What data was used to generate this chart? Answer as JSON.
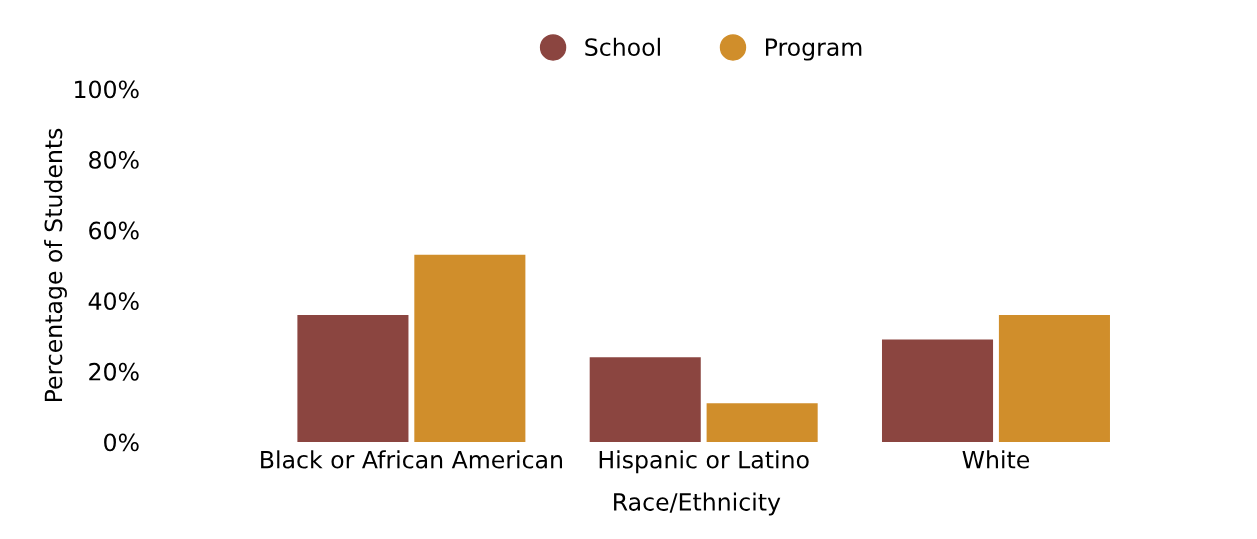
{
  "chart_data": {
    "type": "bar",
    "xlabel": "Race/Ethnicity",
    "ylabel": "Percentage of Students",
    "categories": [
      "Black or African American",
      "Hispanic or Latino",
      "White"
    ],
    "series": [
      {
        "name": "School",
        "color": "#8b4540",
        "values": [
          36,
          24,
          29
        ]
      },
      {
        "name": "Program",
        "color": "#d08e2b",
        "values": [
          53,
          11,
          36
        ]
      }
    ],
    "ylim": [
      0,
      100
    ],
    "yticks": [
      {
        "value": 0,
        "label": "0%"
      },
      {
        "value": 20,
        "label": "20%"
      },
      {
        "value": 40,
        "label": "40%"
      },
      {
        "value": 60,
        "label": "60%"
      },
      {
        "value": 80,
        "label": "80%"
      },
      {
        "value": 100,
        "label": "100%"
      }
    ],
    "grid": false,
    "legend": "top"
  }
}
